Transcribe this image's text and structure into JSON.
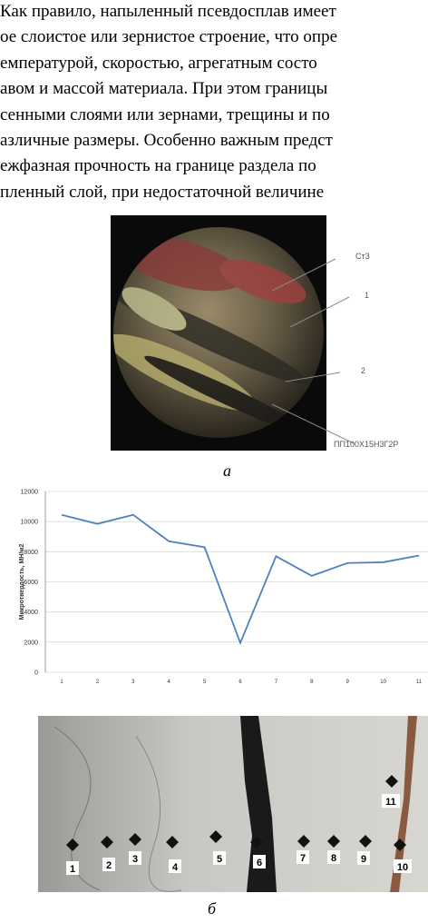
{
  "text_lines": [
    "Как правило, напыленный псевдосплав имеет",
    "ое слоистое или зернистое строение, что опре",
    "емпературой, скоростью, агрегатным состо",
    "авом и массой материала. При этом границы",
    "сенными слоями или зернами, трещины и по",
    "азличные размеры. Особенно важным предст",
    "ежфазная прочность на границе раздела по",
    "пленный слой, при недостаточной величине"
  ],
  "figure_a": {
    "labels": [
      "Ст3",
      "1",
      "2",
      "ПП100Х15Н3Г2Р"
    ],
    "caption": "а"
  },
  "chart_data": {
    "type": "line",
    "y_label": "Микротвердость, МН/м2",
    "categories": [
      "1",
      "2",
      "3",
      "4",
      "5",
      "6",
      "7",
      "8",
      "9",
      "10",
      "11"
    ],
    "values": [
      10450,
      9850,
      10450,
      8700,
      8300,
      1950,
      7700,
      6400,
      7250,
      7300,
      7750
    ],
    "color": "#4f81bd",
    "ylim": [
      0,
      12000
    ],
    "yticks": [
      0,
      2000,
      4000,
      6000,
      8000,
      10000,
      12000
    ],
    "grid": true
  },
  "figure_b": {
    "point_labels": [
      "1",
      "2",
      "3",
      "4",
      "5",
      "6",
      "7",
      "8",
      "9",
      "10",
      "11"
    ],
    "caption": "б"
  }
}
